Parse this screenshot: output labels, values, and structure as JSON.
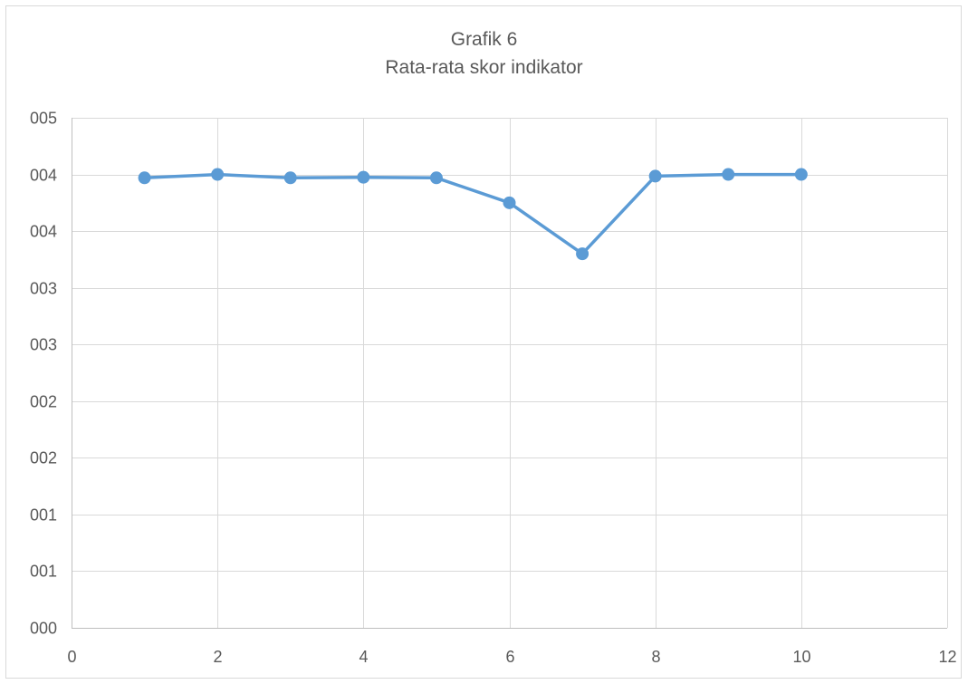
{
  "chart_data": {
    "type": "line",
    "title": "Grafik 6",
    "subtitle": "Rata-rata skor indikator",
    "xlabel": "",
    "ylabel": "",
    "xlim": [
      0,
      12
    ],
    "ylim": [
      0,
      4.5
    ],
    "x_ticks": [
      0,
      2,
      4,
      6,
      8,
      10,
      12
    ],
    "x_tick_labels": [
      "0",
      "2",
      "4",
      "6",
      "8",
      "10",
      "12"
    ],
    "y_ticks": [
      0,
      0.5,
      1,
      1.5,
      2,
      2.5,
      3,
      3.5,
      4,
      4.5
    ],
    "y_tick_labels": [
      "000",
      "001",
      "001",
      "002",
      "002",
      "003",
      "003",
      "004",
      "004",
      "005"
    ],
    "grid": true,
    "legend": "none",
    "series": [
      {
        "color": "#5b9bd5",
        "x": [
          1,
          2,
          3,
          4,
          5,
          6,
          7,
          8,
          9,
          10
        ],
        "y": [
          3.97,
          4.0,
          3.97,
          3.975,
          3.97,
          3.75,
          3.3,
          3.985,
          4.0,
          4.0
        ]
      }
    ]
  }
}
